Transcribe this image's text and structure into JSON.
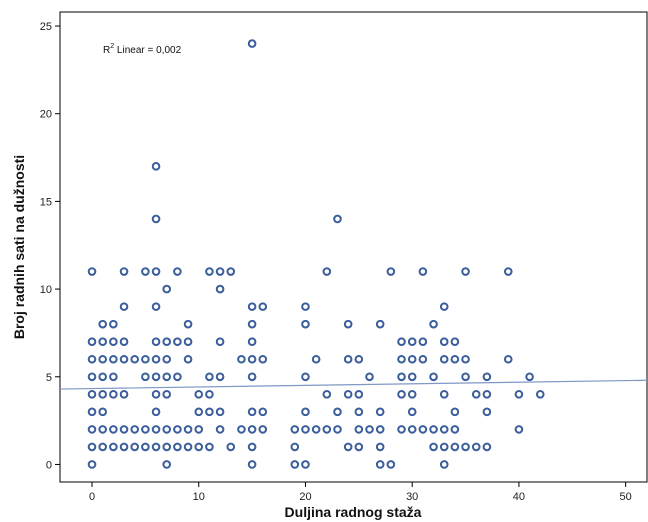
{
  "chart_data": {
    "type": "scatter",
    "xlabel": "Duljina radnog staža",
    "ylabel": "Broj radnih sati na dužnosti",
    "annotation": {
      "main": "R",
      "sup": "2",
      "rest": " Linear = 0,002"
    },
    "xlim": [
      -3,
      52
    ],
    "ylim": [
      -1,
      25.8
    ],
    "xticks": [
      0,
      10,
      20,
      30,
      40,
      50
    ],
    "yticks": [
      0,
      5,
      10,
      15,
      20,
      25
    ],
    "grid": false,
    "colors": {
      "marker": "#3a5d9c",
      "fit_line": "#7f98c6",
      "axis": "#000000"
    },
    "fit_line": {
      "x": [
        -3,
        52
      ],
      "y": [
        4.3,
        4.8
      ]
    },
    "points": [
      [
        0,
        0
      ],
      [
        0,
        1
      ],
      [
        0,
        2
      ],
      [
        0,
        3
      ],
      [
        0,
        4
      ],
      [
        0,
        5
      ],
      [
        0,
        6
      ],
      [
        0,
        7
      ],
      [
        0,
        11
      ],
      [
        1,
        1
      ],
      [
        1,
        2
      ],
      [
        1,
        3
      ],
      [
        1,
        4
      ],
      [
        1,
        5
      ],
      [
        1,
        6
      ],
      [
        1,
        7
      ],
      [
        1,
        8
      ],
      [
        2,
        1
      ],
      [
        2,
        2
      ],
      [
        2,
        4
      ],
      [
        2,
        5
      ],
      [
        2,
        6
      ],
      [
        2,
        7
      ],
      [
        2,
        8
      ],
      [
        3,
        1
      ],
      [
        3,
        2
      ],
      [
        3,
        4
      ],
      [
        3,
        6
      ],
      [
        3,
        7
      ],
      [
        3,
        9
      ],
      [
        3,
        11
      ],
      [
        4,
        1
      ],
      [
        4,
        2
      ],
      [
        4,
        6
      ],
      [
        5,
        1
      ],
      [
        5,
        2
      ],
      [
        5,
        5
      ],
      [
        5,
        6
      ],
      [
        5,
        11
      ],
      [
        6,
        1
      ],
      [
        6,
        2
      ],
      [
        6,
        3
      ],
      [
        6,
        4
      ],
      [
        6,
        5
      ],
      [
        6,
        6
      ],
      [
        6,
        7
      ],
      [
        6,
        9
      ],
      [
        6,
        11
      ],
      [
        6,
        14
      ],
      [
        6,
        17
      ],
      [
        7,
        0
      ],
      [
        7,
        1
      ],
      [
        7,
        2
      ],
      [
        7,
        4
      ],
      [
        7,
        5
      ],
      [
        7,
        6
      ],
      [
        7,
        7
      ],
      [
        7,
        10
      ],
      [
        8,
        1
      ],
      [
        8,
        2
      ],
      [
        8,
        5
      ],
      [
        8,
        7
      ],
      [
        8,
        11
      ],
      [
        9,
        1
      ],
      [
        9,
        2
      ],
      [
        9,
        6
      ],
      [
        9,
        7
      ],
      [
        9,
        8
      ],
      [
        10,
        1
      ],
      [
        10,
        2
      ],
      [
        10,
        3
      ],
      [
        10,
        4
      ],
      [
        11,
        1
      ],
      [
        11,
        3
      ],
      [
        11,
        4
      ],
      [
        11,
        5
      ],
      [
        11,
        11
      ],
      [
        12,
        2
      ],
      [
        12,
        3
      ],
      [
        12,
        5
      ],
      [
        12,
        7
      ],
      [
        12,
        10
      ],
      [
        12,
        11
      ],
      [
        13,
        1
      ],
      [
        13,
        11
      ],
      [
        14,
        2
      ],
      [
        14,
        6
      ],
      [
        15,
        0
      ],
      [
        15,
        1
      ],
      [
        15,
        2
      ],
      [
        15,
        3
      ],
      [
        15,
        5
      ],
      [
        15,
        6
      ],
      [
        15,
        7
      ],
      [
        15,
        8
      ],
      [
        15,
        9
      ],
      [
        15,
        24
      ],
      [
        16,
        2
      ],
      [
        16,
        3
      ],
      [
        16,
        6
      ],
      [
        16,
        9
      ],
      [
        19,
        0
      ],
      [
        19,
        1
      ],
      [
        19,
        2
      ],
      [
        20,
        0
      ],
      [
        20,
        2
      ],
      [
        20,
        3
      ],
      [
        20,
        5
      ],
      [
        20,
        8
      ],
      [
        20,
        9
      ],
      [
        21,
        2
      ],
      [
        21,
        6
      ],
      [
        22,
        2
      ],
      [
        22,
        4
      ],
      [
        22,
        11
      ],
      [
        23,
        2
      ],
      [
        23,
        3
      ],
      [
        23,
        14
      ],
      [
        24,
        1
      ],
      [
        24,
        4
      ],
      [
        24,
        6
      ],
      [
        24,
        8
      ],
      [
        25,
        1
      ],
      [
        25,
        2
      ],
      [
        25,
        3
      ],
      [
        25,
        4
      ],
      [
        25,
        6
      ],
      [
        26,
        2
      ],
      [
        26,
        5
      ],
      [
        27,
        0
      ],
      [
        27,
        1
      ],
      [
        27,
        2
      ],
      [
        27,
        3
      ],
      [
        27,
        8
      ],
      [
        28,
        0
      ],
      [
        28,
        11
      ],
      [
        29,
        2
      ],
      [
        29,
        4
      ],
      [
        29,
        5
      ],
      [
        29,
        6
      ],
      [
        29,
        7
      ],
      [
        30,
        2
      ],
      [
        30,
        3
      ],
      [
        30,
        4
      ],
      [
        30,
        5
      ],
      [
        30,
        6
      ],
      [
        30,
        7
      ],
      [
        31,
        2
      ],
      [
        31,
        6
      ],
      [
        31,
        7
      ],
      [
        31,
        11
      ],
      [
        32,
        1
      ],
      [
        32,
        2
      ],
      [
        32,
        5
      ],
      [
        32,
        8
      ],
      [
        33,
        0
      ],
      [
        33,
        1
      ],
      [
        33,
        2
      ],
      [
        33,
        4
      ],
      [
        33,
        6
      ],
      [
        33,
        7
      ],
      [
        33,
        9
      ],
      [
        34,
        1
      ],
      [
        34,
        2
      ],
      [
        34,
        3
      ],
      [
        34,
        6
      ],
      [
        34,
        7
      ],
      [
        35,
        1
      ],
      [
        35,
        5
      ],
      [
        35,
        6
      ],
      [
        35,
        11
      ],
      [
        36,
        1
      ],
      [
        36,
        4
      ],
      [
        37,
        1
      ],
      [
        37,
        3
      ],
      [
        37,
        4
      ],
      [
        37,
        5
      ],
      [
        39,
        6
      ],
      [
        39,
        11
      ],
      [
        40,
        2
      ],
      [
        40,
        4
      ],
      [
        41,
        5
      ],
      [
        42,
        4
      ]
    ]
  }
}
